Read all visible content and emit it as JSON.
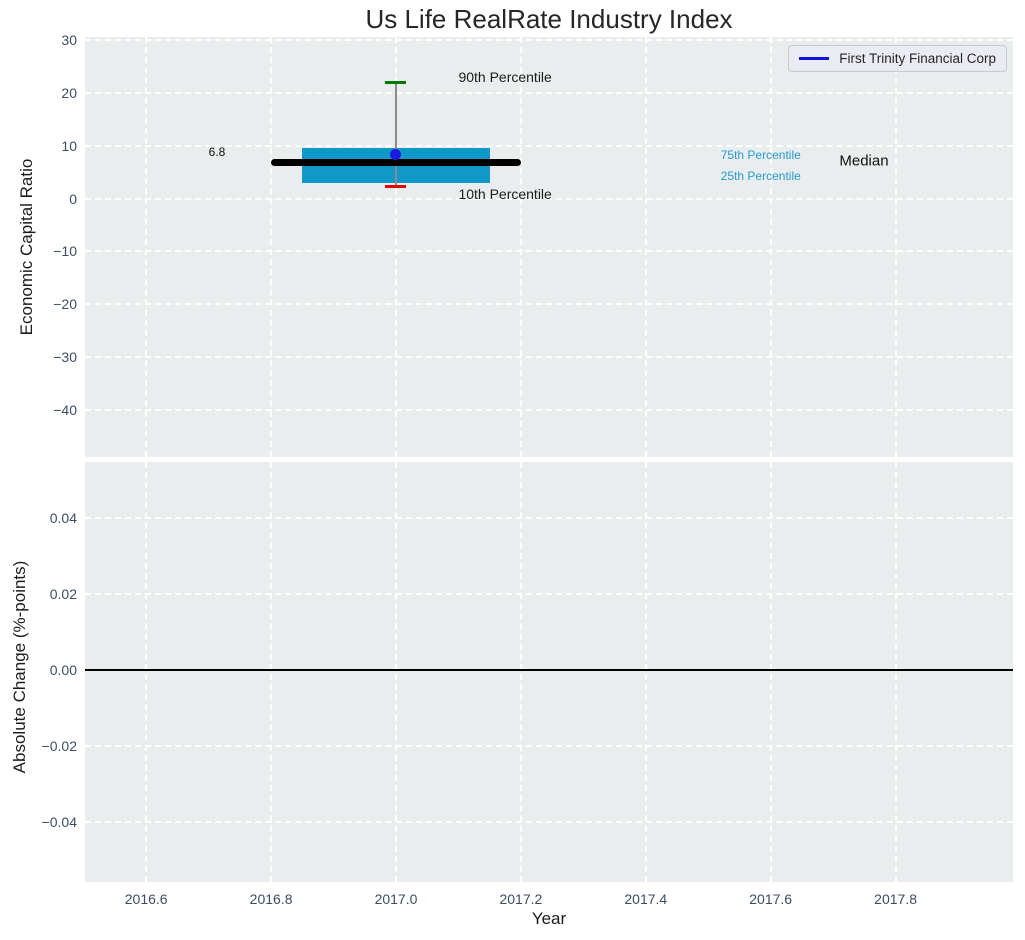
{
  "title": "Us Life RealRate Industry Index",
  "legend": {
    "label": "First Trinity Financial Corp",
    "line_color": "#1212dd",
    "position": "upper right"
  },
  "colors": {
    "figure_bg": "#ffffff",
    "axes_bg": "#e9edee",
    "grid": "#ffffff",
    "tick": "#3b4d63",
    "axis_label": "#1c1c1c",
    "box_fill": "#1098c9",
    "median": "#000000",
    "whisker": "#8a8a8a",
    "cap_upper": "#007a00",
    "cap_lower": "#e60000",
    "mean_dot": "#1c1ce0",
    "cyan_text": "#259cd0",
    "zero_line": "#000000"
  },
  "chart_data": [
    {
      "type": "boxplot",
      "subplot": "top",
      "title": "Us Life RealRate Industry Index",
      "ylabel": "Economic Capital Ratio",
      "xlim": [
        2016.502,
        2017.988
      ],
      "ylim": [
        -48.9,
        30.6
      ],
      "xticks": [
        2016.6,
        2016.8,
        2017.0,
        2017.2,
        2017.4,
        2017.6,
        2017.8
      ],
      "xtick_labels": [
        "2016.6",
        "2016.8",
        "2017.0",
        "2017.2",
        "2017.4",
        "2017.6",
        "2017.8"
      ],
      "yticks": [
        30,
        20,
        10,
        0,
        -10,
        -20,
        -30,
        -40
      ],
      "ytick_labels": [
        "30",
        "20",
        "10",
        "0",
        "−10",
        "−20",
        "−30",
        "−40"
      ],
      "grid": true,
      "legend_position": "upper right",
      "box": {
        "x": 2017.0,
        "box_left": 2016.85,
        "box_right": 2017.15,
        "median_left": 2016.8,
        "median_right": 2017.2,
        "p10": 2.3,
        "p25": 3.0,
        "median": 6.8,
        "p75": 9.6,
        "p90": 21.9,
        "mean": 8.3,
        "median_value_label": "6.8"
      },
      "annotations": [
        {
          "text": "90th Percentile",
          "x": 2017.1,
          "y": 23.0,
          "color": "#1c1c1c",
          "size": 14
        },
        {
          "text": "10th Percentile",
          "x": 2017.1,
          "y": 0.9,
          "color": "#1c1c1c",
          "size": 14
        },
        {
          "text": "75th Percentile",
          "x": 2017.52,
          "y": 8.3,
          "color": "#259cd0",
          "size": 12
        },
        {
          "text": "25th Percentile",
          "x": 2017.52,
          "y": 4.2,
          "color": "#259cd0",
          "size": 12
        },
        {
          "text": "Median",
          "x": 2017.71,
          "y": 7.2,
          "color": "#111111",
          "size": 15
        },
        {
          "text": "6.8",
          "x": 2016.7,
          "y": 8.8,
          "color": "#111111",
          "size": 12
        }
      ]
    },
    {
      "type": "line",
      "subplot": "bottom",
      "ylabel": "Absolute Change (%-points)",
      "xlabel": "Year",
      "xlim": [
        2016.502,
        2017.988
      ],
      "ylim": [
        -0.0558,
        0.0547
      ],
      "xticks": [
        2016.6,
        2016.8,
        2017.0,
        2017.2,
        2017.4,
        2017.6,
        2017.8
      ],
      "xtick_labels": [
        "2016.6",
        "2016.8",
        "2017.0",
        "2017.2",
        "2017.4",
        "2017.6",
        "2017.8"
      ],
      "yticks": [
        0.04,
        0.02,
        0,
        -0.02,
        -0.04
      ],
      "ytick_labels": [
        "0.04",
        "0.02",
        "0.00",
        "−0.02",
        "−0.04"
      ],
      "grid": true,
      "zero_line_y": 0,
      "series": []
    }
  ]
}
